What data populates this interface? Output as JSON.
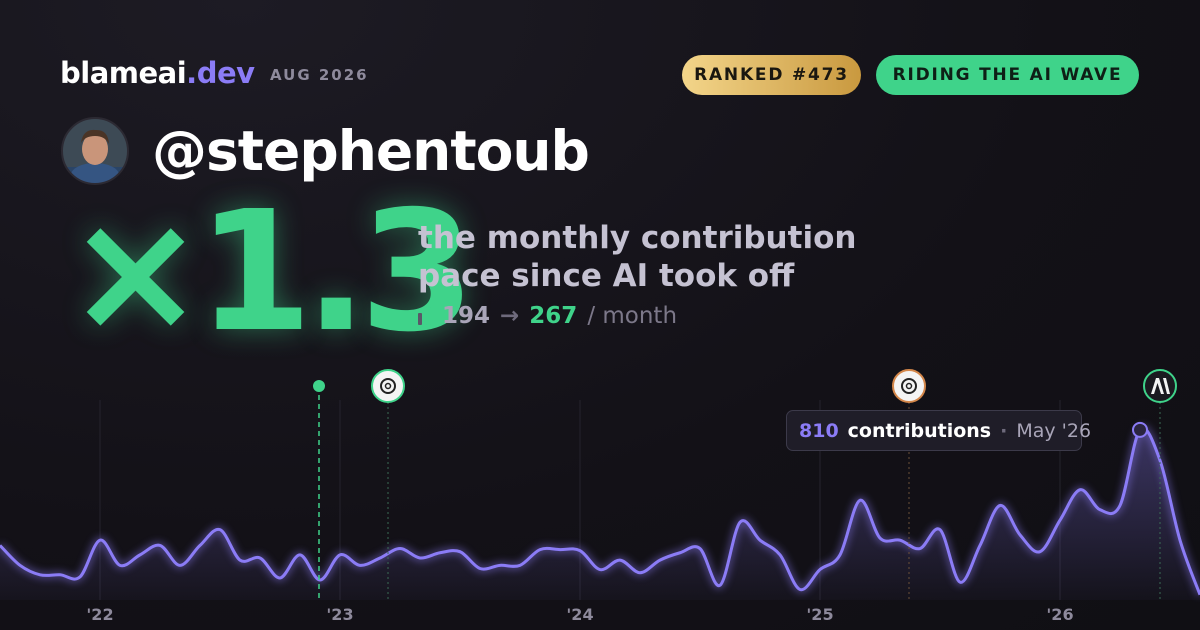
{
  "header": {
    "brand": "blameai",
    "brand_tld": ".dev",
    "period": "AUG 2026",
    "badges": [
      "RANKED #473",
      "RIDING THE AI WAVE"
    ]
  },
  "profile": {
    "handle": "@stephentoub"
  },
  "headline": {
    "multiplier": "×1.3",
    "description": [
      "the monthly contribution",
      "pace since AI took off"
    ],
    "before": 194,
    "arrow": "→",
    "after": 267,
    "unit": "/ month"
  },
  "chart_data": {
    "type": "area",
    "color": "#8b7cf6",
    "categories": [
      null,
      null,
      null,
      null,
      null,
      "'22",
      null,
      null,
      null,
      null,
      null,
      null,
      null,
      null,
      null,
      null,
      null,
      "'23",
      null,
      null,
      null,
      null,
      null,
      null,
      null,
      null,
      null,
      null,
      null,
      "'24",
      null,
      null,
      null,
      null,
      null,
      null,
      null,
      null,
      null,
      null,
      null,
      "'25",
      null,
      null,
      null,
      null,
      null,
      null,
      null,
      null,
      null,
      null,
      null,
      "'26",
      null,
      null,
      null,
      null,
      null,
      null,
      null
    ],
    "values": [
      260,
      165,
      120,
      120,
      110,
      285,
      165,
      215,
      260,
      165,
      260,
      335,
      190,
      200,
      105,
      215,
      95,
      215,
      165,
      200,
      245,
      200,
      225,
      230,
      150,
      165,
      165,
      240,
      240,
      235,
      145,
      190,
      130,
      190,
      225,
      245,
      70,
      370,
      285,
      215,
      50,
      145,
      215,
      475,
      295,
      285,
      245,
      335,
      85,
      260,
      450,
      310,
      230,
      380,
      525,
      430,
      450,
      810,
      665,
      285,
      25
    ],
    "ylim": [
      0,
      1000
    ],
    "tooltip": {
      "unit": "contributions",
      "separator": "·",
      "label": "May '26"
    }
  }
}
